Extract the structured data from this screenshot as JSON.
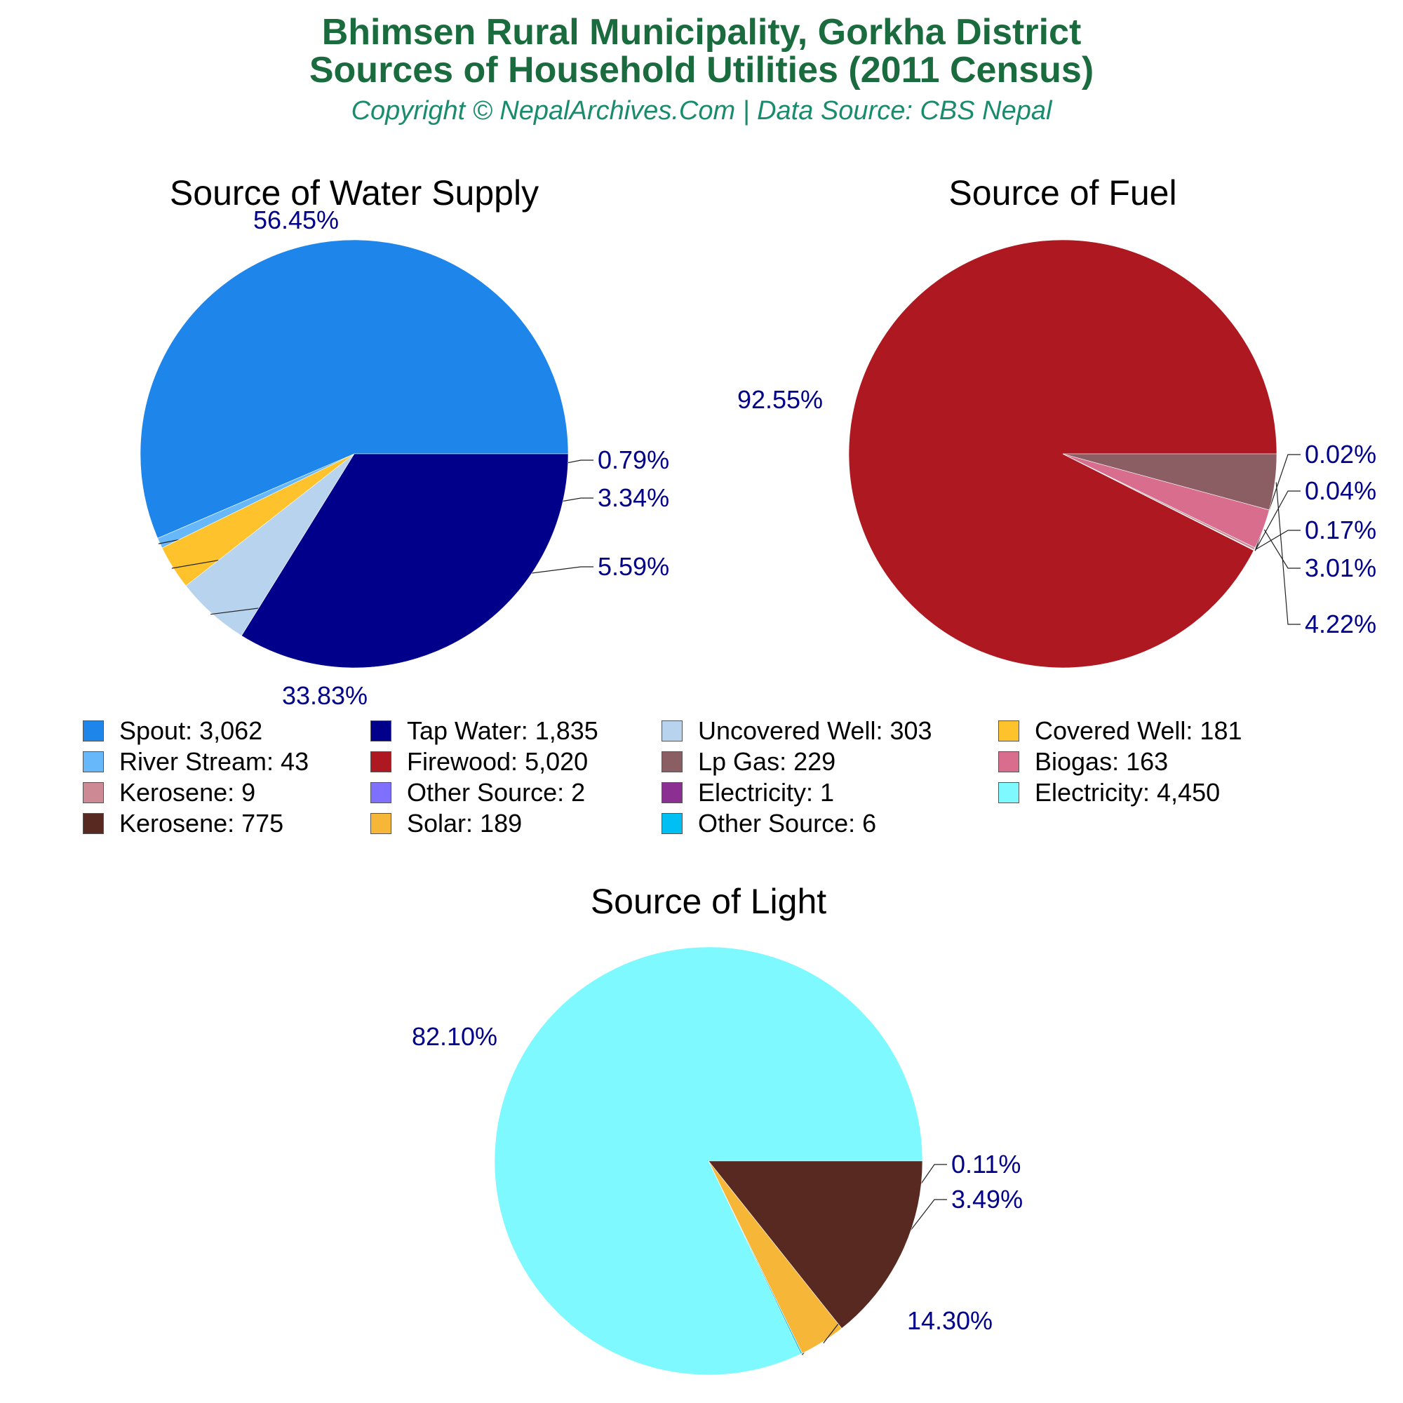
{
  "header": {
    "title_line1": "Bhimsen Rural Municipality, Gorkha District",
    "title_line2": "Sources of Household Utilities (2011 Census)",
    "subtitle": "Copyright © NepalArchives.Com | Data Source: CBS Nepal"
  },
  "colors": {
    "title": "#1a6b3e",
    "subtitle": "#1a8c6e",
    "percent_labels": "#00008b"
  },
  "chart_data": [
    {
      "type": "pie",
      "title": "Source of Water Supply",
      "slices": [
        {
          "label": "Spout",
          "value": 3062,
          "percent_label": "56.45%",
          "color": "#1e86ea"
        },
        {
          "label": "River Stream",
          "value": 43,
          "percent_label": "0.79%",
          "color": "#66b8fa"
        },
        {
          "label": "Covered Well",
          "value": 181,
          "percent_label": "3.34%",
          "color": "#fdc22c"
        },
        {
          "label": "Uncovered Well",
          "value": 303,
          "percent_label": "5.59%",
          "color": "#b8d3ee"
        },
        {
          "label": "Tap Water",
          "value": 1835,
          "percent_label": "33.83%",
          "color": "#00008b"
        }
      ]
    },
    {
      "type": "pie",
      "title": "Source of Fuel",
      "slices": [
        {
          "label": "Firewood",
          "value": 5020,
          "percent_label": "92.55%",
          "color": "#ae1820"
        },
        {
          "label": "Other Source",
          "value": 2,
          "percent_label": "0.04%",
          "color": "#7f70ff"
        },
        {
          "label": "Electricity",
          "value": 1,
          "percent_label": "0.02%",
          "color": "#8b3092"
        },
        {
          "label": "Kerosene",
          "value": 9,
          "percent_label": "0.17%",
          "color": "#cd8a94"
        },
        {
          "label": "Biogas",
          "value": 163,
          "percent_label": "3.01%",
          "color": "#d86d8e"
        },
        {
          "label": "Lp Gas",
          "value": 229,
          "percent_label": "4.22%",
          "color": "#8b5e64"
        }
      ]
    },
    {
      "type": "pie",
      "title": "Source of Light",
      "slices": [
        {
          "label": "Electricity",
          "value": 4450,
          "percent_label": "82.10%",
          "color": "#7ef9ff"
        },
        {
          "label": "Other Source",
          "value": 6,
          "percent_label": "0.11%",
          "color": "#00bff3"
        },
        {
          "label": "Solar",
          "value": 189,
          "percent_label": "3.49%",
          "color": "#f6b738"
        },
        {
          "label": "Kerosene",
          "value": 775,
          "percent_label": "14.30%",
          "color": "#582920"
        }
      ]
    }
  ],
  "legend": [
    {
      "label": "Spout: 3,062",
      "color": "#1e86ea"
    },
    {
      "label": "Tap Water: 1,835",
      "color": "#00008b"
    },
    {
      "label": "Uncovered Well: 303",
      "color": "#b8d3ee"
    },
    {
      "label": "Covered Well: 181",
      "color": "#fdc22c"
    },
    {
      "label": "River Stream: 43",
      "color": "#66b8fa"
    },
    {
      "label": "Firewood: 5,020",
      "color": "#ae1820"
    },
    {
      "label": "Lp Gas: 229",
      "color": "#8b5e64"
    },
    {
      "label": "Biogas: 163",
      "color": "#d86d8e"
    },
    {
      "label": "Kerosene: 9",
      "color": "#cd8a94"
    },
    {
      "label": "Other Source: 2",
      "color": "#7f70ff"
    },
    {
      "label": "Electricity: 1",
      "color": "#8b3092"
    },
    {
      "label": "Electricity: 4,450",
      "color": "#7ef9ff"
    },
    {
      "label": "Kerosene: 775",
      "color": "#582920"
    },
    {
      "label": "Solar: 189",
      "color": "#f6b738"
    },
    {
      "label": "Other Source: 6",
      "color": "#00bff3"
    }
  ]
}
